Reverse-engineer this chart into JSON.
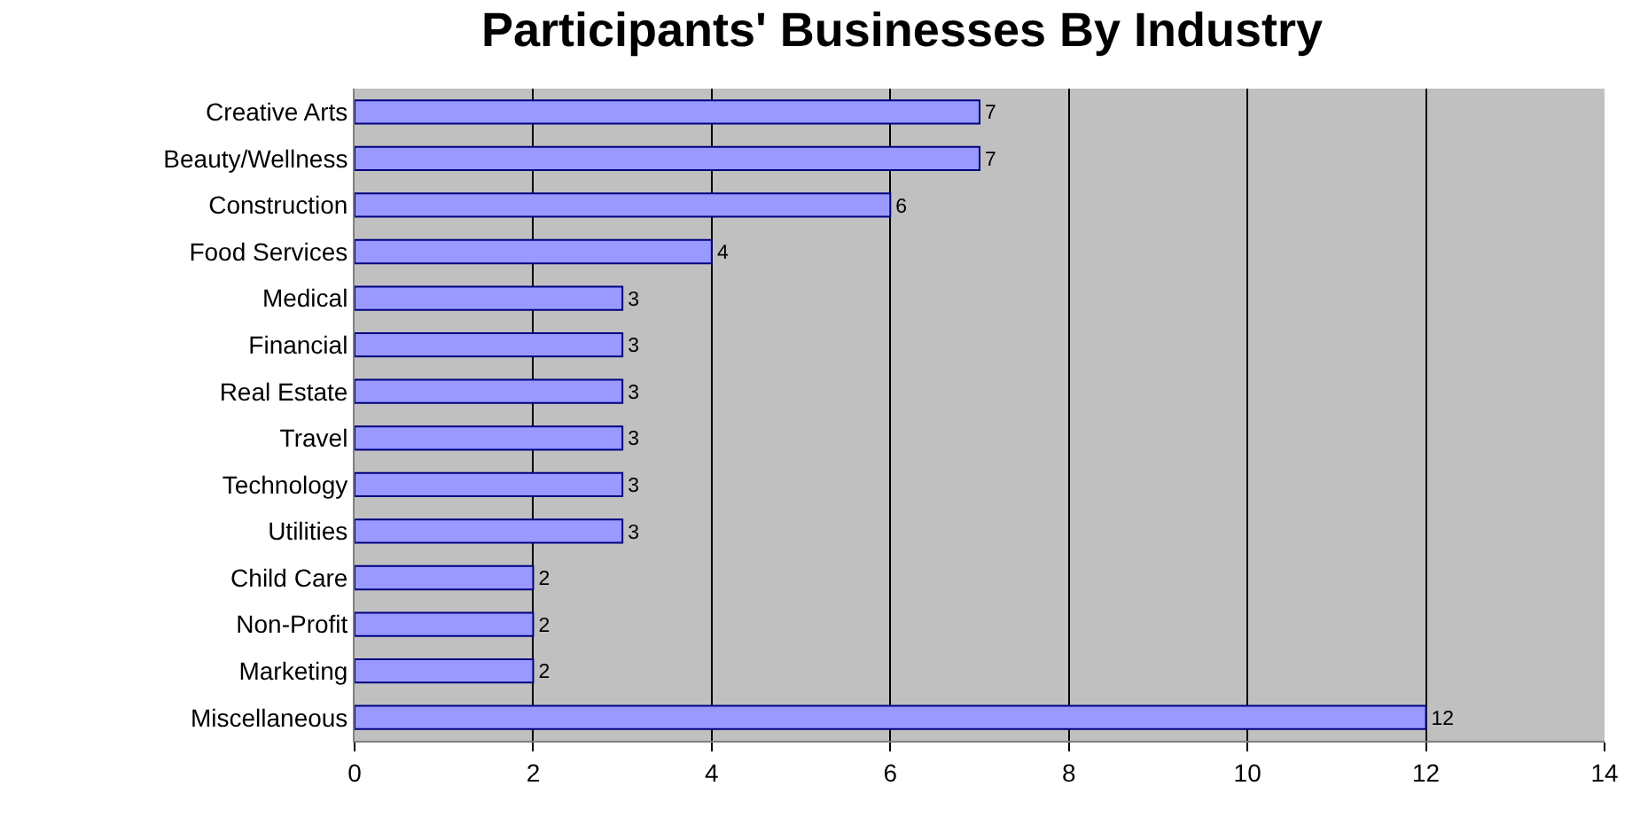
{
  "chart_data": {
    "type": "bar",
    "orientation": "horizontal",
    "title": "Participants' Businesses By Industry",
    "categories": [
      "Creative Arts",
      "Beauty/Wellness",
      "Construction",
      "Food Services",
      "Medical",
      "Financial",
      "Real Estate",
      "Travel",
      "Technology",
      "Utilities",
      "Child Care",
      "Non-Profit",
      "Marketing",
      "Miscellaneous"
    ],
    "values": [
      7,
      7,
      6,
      4,
      3,
      3,
      3,
      3,
      3,
      3,
      2,
      2,
      2,
      12
    ],
    "color": "#9999ff",
    "xlim": [
      0,
      14
    ],
    "xticks": [
      0,
      2,
      4,
      6,
      8,
      10,
      12,
      14
    ],
    "grid": "x",
    "data_labels": true,
    "legend": false
  }
}
